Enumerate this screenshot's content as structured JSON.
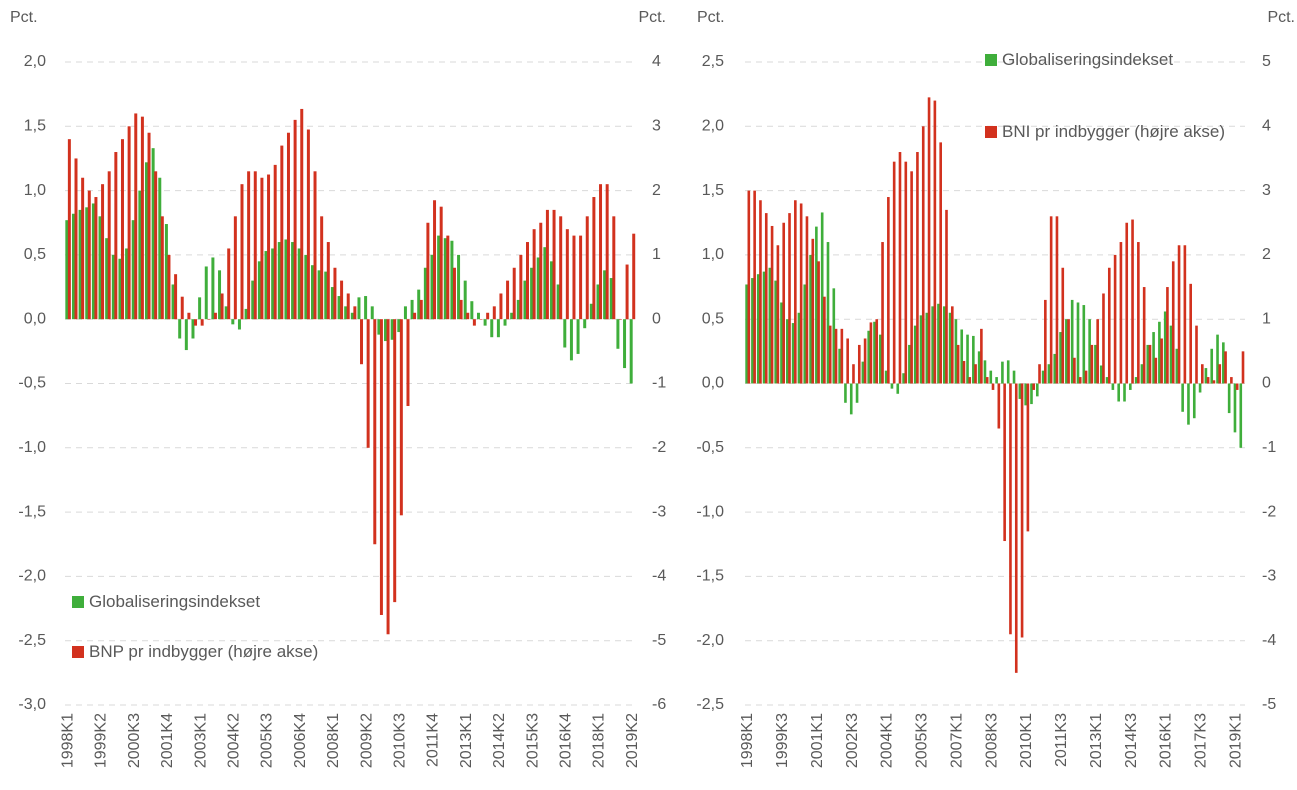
{
  "chart_data": [
    {
      "type": "bar",
      "ylabel": "Pct.",
      "y2label": "Pct.",
      "legend": "lower left",
      "grid": true,
      "categories": [
        "1998K1",
        null,
        null,
        null,
        null,
        "1999K2",
        null,
        null,
        null,
        null,
        "2000K3",
        null,
        null,
        null,
        null,
        "2001K4",
        null,
        null,
        null,
        null,
        "2003K1",
        null,
        null,
        null,
        null,
        "2004K2",
        null,
        null,
        null,
        null,
        "2005K3",
        null,
        null,
        null,
        null,
        "2006K4",
        null,
        null,
        null,
        null,
        "2008K1",
        null,
        null,
        null,
        null,
        "2009K2",
        null,
        null,
        null,
        null,
        "2010K3",
        null,
        null,
        null,
        null,
        "2011K4",
        null,
        null,
        null,
        null,
        "2013K1",
        null,
        null,
        null,
        null,
        "2014K2",
        null,
        null,
        null,
        null,
        "2015K3",
        null,
        null,
        null,
        null,
        "2016K4",
        null,
        null,
        null,
        null,
        "2018K1",
        null,
        null,
        null,
        null,
        "2019K2"
      ],
      "series": [
        {
          "name": "Globaliseringsindekset",
          "color": "#3fae3b",
          "values": [
            0.77,
            0.82,
            0.85,
            0.87,
            0.9,
            0.8,
            0.63,
            0.5,
            0.47,
            0.55,
            0.77,
            1.0,
            1.22,
            1.33,
            1.1,
            0.74,
            0.27,
            -0.15,
            -0.24,
            -0.15,
            0.17,
            0.41,
            0.48,
            0.38,
            0.1,
            -0.04,
            -0.08,
            0.08,
            0.3,
            0.45,
            0.53,
            0.55,
            0.6,
            0.62,
            0.6,
            0.55,
            0.5,
            0.42,
            0.38,
            0.37,
            0.25,
            0.18,
            0.1,
            0.05,
            0.17,
            0.18,
            0.1,
            -0.12,
            -0.17,
            -0.16,
            -0.1,
            0.1,
            0.15,
            0.23,
            0.4,
            0.5,
            0.65,
            0.63,
            0.61,
            0.5,
            0.3,
            0.14,
            0.05,
            -0.05,
            -0.14,
            -0.14,
            -0.05,
            0.05,
            0.15,
            0.3,
            0.4,
            0.48,
            0.56,
            0.45,
            0.27,
            -0.22,
            -0.32,
            -0.27,
            -0.07,
            0.12,
            0.27,
            0.38,
            0.32,
            -0.23,
            -0.38,
            -0.5
          ]
        },
        {
          "name": "BNP pr indbygger (højre akse)",
          "color": "#d2311e",
          "axis": "y2",
          "values": [
            2.8,
            2.5,
            2.2,
            2.0,
            1.9,
            2.1,
            2.3,
            2.6,
            2.8,
            3.0,
            3.2,
            3.15,
            2.9,
            2.3,
            1.6,
            1.0,
            0.7,
            0.35,
            0.1,
            -0.1,
            -0.1,
            0.0,
            0.1,
            0.4,
            1.1,
            1.6,
            2.1,
            2.3,
            2.3,
            2.2,
            2.25,
            2.4,
            2.7,
            2.9,
            3.1,
            3.27,
            2.95,
            2.3,
            1.6,
            1.2,
            0.8,
            0.6,
            0.4,
            0.2,
            -0.7,
            -2.0,
            -3.5,
            -4.6,
            -4.9,
            -4.4,
            -3.05,
            -1.35,
            0.1,
            0.3,
            1.5,
            1.85,
            1.75,
            1.3,
            0.8,
            0.3,
            0.1,
            -0.1,
            0.0,
            0.1,
            0.2,
            0.4,
            0.6,
            0.8,
            1.0,
            1.2,
            1.4,
            1.5,
            1.7,
            1.7,
            1.6,
            1.4,
            1.3,
            1.3,
            1.6,
            1.9,
            2.1,
            2.1,
            1.6,
            0.0,
            0.85,
            1.33
          ]
        }
      ],
      "ylim": [
        -3,
        2
      ],
      "yticks": [
        {
          "value": 2,
          "label": "2,0"
        },
        {
          "value": 1.5,
          "label": "1,5"
        },
        {
          "value": 1,
          "label": "1,0"
        },
        {
          "value": 0.5,
          "label": "0,5"
        },
        {
          "value": 0,
          "label": "0,0"
        },
        {
          "value": -0.5,
          "label": "-0,5"
        },
        {
          "value": -1,
          "label": "-1,0"
        },
        {
          "value": -1.5,
          "label": "-1,5"
        },
        {
          "value": -2,
          "label": "-2,0"
        },
        {
          "value": -2.5,
          "label": "-2,5"
        },
        {
          "value": -3,
          "label": "-3,0"
        }
      ],
      "y2lim": [
        -6,
        4
      ],
      "y2ticks": [
        4,
        3,
        2,
        1,
        0,
        -1,
        -2,
        -3,
        -4,
        -5,
        -6
      ]
    },
    {
      "type": "bar",
      "ylabel": "Pct.",
      "y2label": "Pct.",
      "legend": "upper right",
      "grid": true,
      "categories": [
        "1998K1",
        null,
        null,
        null,
        null,
        null,
        "1999K3",
        null,
        null,
        null,
        null,
        null,
        "2001K1",
        null,
        null,
        null,
        null,
        null,
        "2002K3",
        null,
        null,
        null,
        null,
        null,
        "2004K1",
        null,
        null,
        null,
        null,
        null,
        "2005K3",
        null,
        null,
        null,
        null,
        null,
        "2007K1",
        null,
        null,
        null,
        null,
        null,
        "2008K3",
        null,
        null,
        null,
        null,
        null,
        "2010K1",
        null,
        null,
        null,
        null,
        null,
        "2011K3",
        null,
        null,
        null,
        null,
        null,
        "2013K1",
        null,
        null,
        null,
        null,
        null,
        "2014K3",
        null,
        null,
        null,
        null,
        null,
        "2016K1",
        null,
        null,
        null,
        null,
        null,
        "2017K3",
        null,
        null,
        null,
        null,
        null,
        "2019K1",
        null
      ],
      "series": [
        {
          "name": "Globaliseringsindekset",
          "color": "#3fae3b",
          "values": [
            0.77,
            0.82,
            0.85,
            0.87,
            0.9,
            0.8,
            0.63,
            0.5,
            0.47,
            0.55,
            0.77,
            1.0,
            1.22,
            1.33,
            1.1,
            0.74,
            0.27,
            -0.15,
            -0.24,
            -0.15,
            0.17,
            0.41,
            0.48,
            0.38,
            0.1,
            -0.04,
            -0.08,
            0.08,
            0.3,
            0.45,
            0.53,
            0.55,
            0.6,
            0.62,
            0.6,
            0.55,
            0.5,
            0.42,
            0.38,
            0.37,
            0.25,
            0.18,
            0.1,
            0.05,
            0.17,
            0.18,
            0.1,
            -0.12,
            -0.17,
            -0.16,
            -0.1,
            0.1,
            0.15,
            0.23,
            0.4,
            0.5,
            0.65,
            0.63,
            0.61,
            0.5,
            0.3,
            0.14,
            0.05,
            -0.05,
            -0.14,
            -0.14,
            -0.05,
            0.05,
            0.15,
            0.3,
            0.4,
            0.48,
            0.56,
            0.45,
            0.27,
            -0.22,
            -0.32,
            -0.27,
            -0.07,
            0.12,
            0.27,
            0.38,
            0.32,
            -0.23,
            -0.38,
            -0.5
          ]
        },
        {
          "name": "BNI pr indbygger (højre akse)",
          "color": "#d2311e",
          "axis": "y2",
          "values": [
            3.0,
            3.0,
            2.85,
            2.65,
            2.45,
            2.15,
            2.5,
            2.65,
            2.85,
            2.8,
            2.6,
            2.25,
            1.9,
            1.35,
            0.9,
            0.85,
            0.85,
            0.7,
            0.3,
            0.6,
            0.7,
            0.95,
            1.0,
            2.2,
            2.9,
            3.45,
            3.6,
            3.45,
            3.3,
            3.6,
            4.0,
            4.45,
            4.4,
            3.75,
            2.7,
            1.2,
            0.6,
            0.35,
            0.1,
            0.3,
            0.85,
            0.1,
            -0.1,
            -0.7,
            -2.45,
            -3.9,
            -4.5,
            -3.95,
            -2.3,
            -0.1,
            0.3,
            1.3,
            2.6,
            2.6,
            1.8,
            1.0,
            0.4,
            0.1,
            0.2,
            0.6,
            1.0,
            1.4,
            1.8,
            2.0,
            2.2,
            2.5,
            2.55,
            2.2,
            1.5,
            0.6,
            0.4,
            0.7,
            1.5,
            1.9,
            2.15,
            2.15,
            1.55,
            0.9,
            0.3,
            0.1,
            0.05,
            0.3,
            0.5,
            0.1,
            -0.1,
            0.5
          ]
        }
      ],
      "ylim": [
        -2.5,
        2.5
      ],
      "yticks": [
        {
          "value": 2.5,
          "label": "2,5"
        },
        {
          "value": 2,
          "label": "2,0"
        },
        {
          "value": 1.5,
          "label": "1,5"
        },
        {
          "value": 1,
          "label": "1,0"
        },
        {
          "value": 0.5,
          "label": "0,5"
        },
        {
          "value": 0,
          "label": "0,0"
        },
        {
          "value": -0.5,
          "label": "-0,5"
        },
        {
          "value": -1,
          "label": "-1,0"
        },
        {
          "value": -1.5,
          "label": "-1,5"
        },
        {
          "value": -2,
          "label": "-2,0"
        },
        {
          "value": -2.5,
          "label": "-2,5"
        }
      ],
      "y2lim": [
        -5,
        5
      ],
      "y2ticks": [
        5,
        4,
        3,
        2,
        1,
        0,
        -1,
        -2,
        -3,
        -4,
        -5
      ]
    }
  ]
}
